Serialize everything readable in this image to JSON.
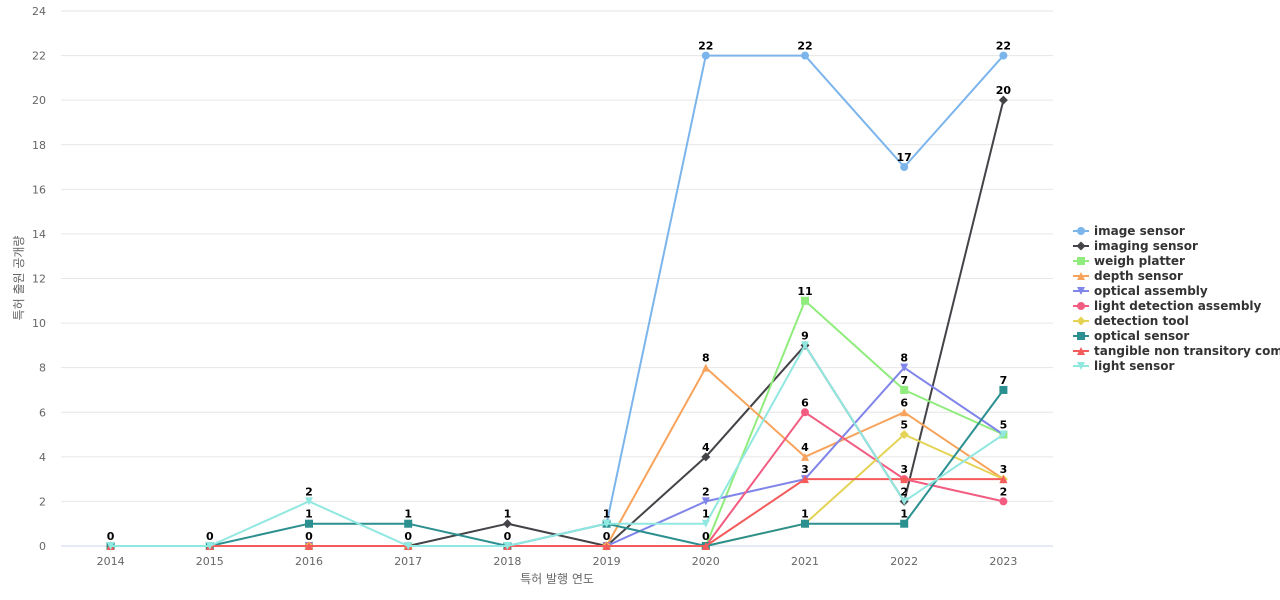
{
  "chart_data": {
    "type": "line",
    "title": "",
    "xlabel": "특허 발행 연도",
    "ylabel": "특허 출원 공개량",
    "categories": [
      "2014",
      "2015",
      "2016",
      "2017",
      "2018",
      "2019",
      "2020",
      "2021",
      "2022",
      "2023"
    ],
    "ylim": [
      0,
      24
    ],
    "yticks": [
      0,
      2,
      4,
      6,
      8,
      10,
      12,
      14,
      16,
      18,
      20,
      22,
      24
    ],
    "grid": true,
    "legend_position": "right",
    "series": [
      {
        "name": "image sensor",
        "legend_label": "image sensor",
        "color": "#7cb5ec",
        "marker": "circle",
        "values": [
          0,
          0,
          0,
          0,
          0,
          1,
          22,
          22,
          17,
          22
        ]
      },
      {
        "name": "imaging sensor",
        "legend_label": "imaging sensor",
        "color": "#434348",
        "marker": "diamond",
        "values": [
          0,
          0,
          0,
          0,
          1,
          0,
          4,
          9,
          2,
          20
        ]
      },
      {
        "name": "weigh platter",
        "legend_label": "weigh platter",
        "color": "#90ed7d",
        "marker": "square",
        "values": [
          0,
          0,
          0,
          0,
          0,
          0,
          0,
          11,
          7,
          5
        ]
      },
      {
        "name": "depth sensor",
        "legend_label": "depth sensor",
        "color": "#f7a35c",
        "marker": "triangle",
        "values": [
          0,
          0,
          0,
          0,
          0,
          0,
          8,
          4,
          6,
          3
        ]
      },
      {
        "name": "optical assembly",
        "legend_label": "optical assembly",
        "color": "#8085e9",
        "marker": "triangle-down",
        "values": [
          0,
          0,
          0,
          0,
          0,
          0,
          2,
          3,
          8,
          5
        ]
      },
      {
        "name": "light detection assembly",
        "legend_label": "light detection assembly",
        "color": "#f15c80",
        "marker": "circle",
        "values": [
          0,
          0,
          0,
          0,
          0,
          0,
          0,
          6,
          3,
          2
        ]
      },
      {
        "name": "detection tool",
        "legend_label": "detection tool",
        "color": "#e4d354",
        "marker": "diamond",
        "values": [
          0,
          0,
          0,
          0,
          0,
          0,
          0,
          1,
          5,
          3
        ]
      },
      {
        "name": "optical sensor",
        "legend_label": "optical sensor",
        "color": "#2b908f",
        "marker": "square",
        "values": [
          0,
          0,
          1,
          1,
          0,
          1,
          0,
          1,
          1,
          7
        ]
      },
      {
        "name": "tangible non transitory computer readable medium",
        "legend_label": "tangible non transitory com...",
        "color": "#f45b5b",
        "marker": "triangle",
        "values": [
          0,
          0,
          0,
          0,
          0,
          0,
          0,
          3,
          3,
          3
        ]
      },
      {
        "name": "light sensor",
        "legend_label": "light sensor",
        "color": "#91e8e1",
        "marker": "triangle-down",
        "values": [
          0,
          0,
          2,
          0,
          0,
          1,
          1,
          9,
          2,
          5
        ]
      }
    ],
    "data_labels": [
      {
        "x": "2014",
        "y": 0,
        "text": "0"
      },
      {
        "x": "2015",
        "y": 0,
        "text": "0"
      },
      {
        "x": "2016",
        "y": 2,
        "text": "2"
      },
      {
        "x": "2016",
        "y": 1,
        "text": "1"
      },
      {
        "x": "2016",
        "y": 0,
        "text": "0"
      },
      {
        "x": "2017",
        "y": 1,
        "text": "1"
      },
      {
        "x": "2017",
        "y": 0,
        "text": "0"
      },
      {
        "x": "2018",
        "y": 1,
        "text": "1"
      },
      {
        "x": "2018",
        "y": 0,
        "text": "0"
      },
      {
        "x": "2019",
        "y": 1,
        "text": "1"
      },
      {
        "x": "2019",
        "y": 0,
        "text": "0"
      },
      {
        "x": "2020",
        "y": 22,
        "text": "22"
      },
      {
        "x": "2020",
        "y": 8,
        "text": "8"
      },
      {
        "x": "2020",
        "y": 4,
        "text": "4"
      },
      {
        "x": "2020",
        "y": 2,
        "text": "2"
      },
      {
        "x": "2020",
        "y": 1,
        "text": "1"
      },
      {
        "x": "2020",
        "y": 0,
        "text": "0"
      },
      {
        "x": "2021",
        "y": 22,
        "text": "22"
      },
      {
        "x": "2021",
        "y": 11,
        "text": "11"
      },
      {
        "x": "2021",
        "y": 9,
        "text": "9"
      },
      {
        "x": "2021",
        "y": 6,
        "text": "6"
      },
      {
        "x": "2021",
        "y": 4,
        "text": "4"
      },
      {
        "x": "2021",
        "y": 3,
        "text": "3"
      },
      {
        "x": "2021",
        "y": 1,
        "text": "1"
      },
      {
        "x": "2022",
        "y": 17,
        "text": "17"
      },
      {
        "x": "2022",
        "y": 8,
        "text": "8"
      },
      {
        "x": "2022",
        "y": 7,
        "text": "7"
      },
      {
        "x": "2022",
        "y": 6,
        "text": "6"
      },
      {
        "x": "2022",
        "y": 5,
        "text": "5"
      },
      {
        "x": "2022",
        "y": 3,
        "text": "3"
      },
      {
        "x": "2022",
        "y": 2,
        "text": "2"
      },
      {
        "x": "2022",
        "y": 1,
        "text": "1"
      },
      {
        "x": "2023",
        "y": 22,
        "text": "22"
      },
      {
        "x": "2023",
        "y": 20,
        "text": "20"
      },
      {
        "x": "2023",
        "y": 7,
        "text": "7"
      },
      {
        "x": "2023",
        "y": 5,
        "text": "5"
      },
      {
        "x": "2023",
        "y": 3,
        "text": "3"
      },
      {
        "x": "2023",
        "y": 2,
        "text": "2"
      }
    ]
  }
}
